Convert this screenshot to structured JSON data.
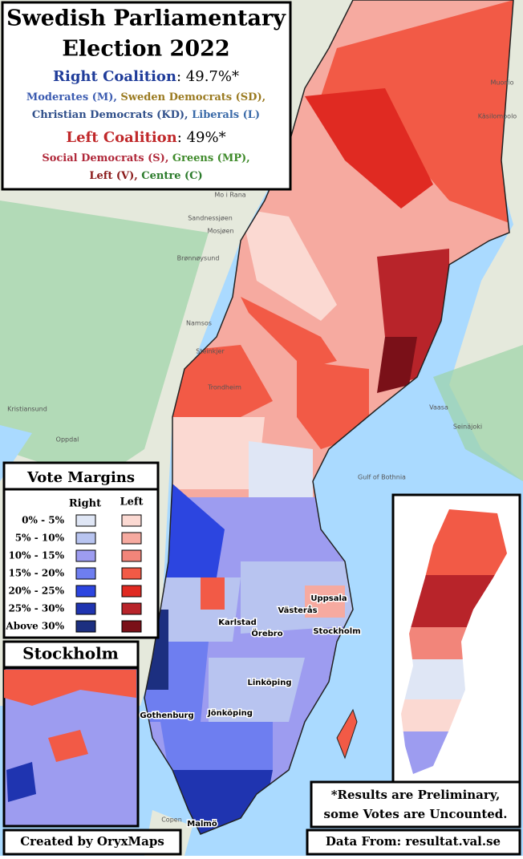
{
  "header": {
    "title_lines": [
      "Swedish Parliamentary",
      "Election 2022"
    ],
    "right": {
      "label": "Right Coalition",
      "result": ": 49.7%*",
      "color": "#1f3c9a",
      "party_lines": [
        [
          {
            "text": "Moderates (M),",
            "color": "#3b5bb0"
          },
          {
            "text": "Sweden Democrats (SD),",
            "color": "#9a7a20"
          }
        ],
        [
          {
            "text": "Christian Democrats (KD),",
            "color": "#2f4f8a"
          },
          {
            "text": "Liberals (L)",
            "color": "#3a6aa8"
          }
        ]
      ]
    },
    "left": {
      "label": "Left Coalition",
      "result": ": 49%*",
      "color": "#c0282a",
      "party_lines": [
        [
          {
            "text": "Social Democrats (S),",
            "color": "#b0283a"
          },
          {
            "text": "Greens (MP),",
            "color": "#3e8a2a"
          }
        ],
        [
          {
            "text": "Left (V),",
            "color": "#8a1a1a"
          },
          {
            "text": "Centre (C)",
            "color": "#2a7a2a"
          }
        ]
      ]
    }
  },
  "legend": {
    "title": "Vote Margins",
    "right_header": "Right",
    "left_header": "Left",
    "rows": [
      {
        "label": "0% - 5%",
        "right_color": "#dfe6f5",
        "left_color": "#fbd9d2"
      },
      {
        "label": "5% - 10%",
        "right_color": "#b8c4f0",
        "left_color": "#f6aaa0"
      },
      {
        "label": "10% - 15%",
        "right_color": "#9d9cf0",
        "left_color": "#f2857a"
      },
      {
        "label": "15% - 20%",
        "right_color": "#6e7ef0",
        "left_color": "#f25a46"
      },
      {
        "label": "20% - 25%",
        "right_color": "#2c45e0",
        "left_color": "#e02a22"
      },
      {
        "label": "25% - 30%",
        "right_color": "#1f34b0",
        "left_color": "#b8242a"
      },
      {
        "label": "Above 30%",
        "right_color": "#1c2f80",
        "left_color": "#7a1018"
      }
    ]
  },
  "stockholm_inset": {
    "title": "Stockholm"
  },
  "cities": [
    "Uppsala",
    "Västerås",
    "Karlstad",
    "Örebro",
    "Stockholm",
    "Linköping",
    "Gothenburg",
    "Jönköping",
    "Malmö"
  ],
  "basemap_labels": [
    "Mo i Rana",
    "Sandnessjøen",
    "Mosjøen",
    "Brønnøysund",
    "Namsos",
    "Steinkjer",
    "Trondheim",
    "Kristiansund",
    "Oppdal",
    "Vaasa",
    "Seinäjoki",
    "Gulf of Bothnia",
    "Muonio",
    "Käsilompolo",
    "Copen"
  ],
  "note_lines": [
    "*Results are Preliminary,",
    "some Votes are Uncounted."
  ],
  "credit": "Created by OryxMaps",
  "source": "Data From: resultat.val.se"
}
